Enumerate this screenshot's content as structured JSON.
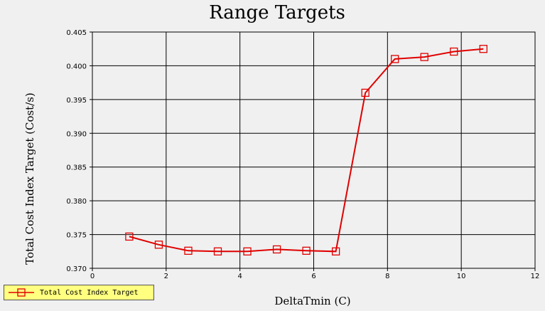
{
  "chart_data": {
    "type": "line",
    "title": "Range Targets",
    "xlabel": "DeltaTmin (C)",
    "ylabel": "Total Cost Index Target (Cost/s)",
    "xlim": [
      0,
      12
    ],
    "ylim": [
      0.37,
      0.405
    ],
    "xticks": [
      "0",
      "2",
      "4",
      "6",
      "8",
      "10",
      "12"
    ],
    "yticks": [
      "0.370",
      "0.375",
      "0.380",
      "0.385",
      "0.390",
      "0.395",
      "0.400",
      "0.405"
    ],
    "grid": true,
    "legend_position": "bottom-left",
    "series": [
      {
        "name": "Total Cost Index Target",
        "color": "#e00000",
        "marker": "square",
        "x": [
          1.0,
          1.8,
          2.6,
          3.4,
          4.2,
          5.0,
          5.8,
          6.6,
          7.4,
          8.2,
          9.0,
          9.8,
          10.6
        ],
        "y": [
          0.3747,
          0.3735,
          0.3726,
          0.3725,
          0.3725,
          0.3728,
          0.3726,
          0.3725,
          0.396,
          0.401,
          0.4013,
          0.4021,
          0.4025
        ]
      }
    ]
  }
}
